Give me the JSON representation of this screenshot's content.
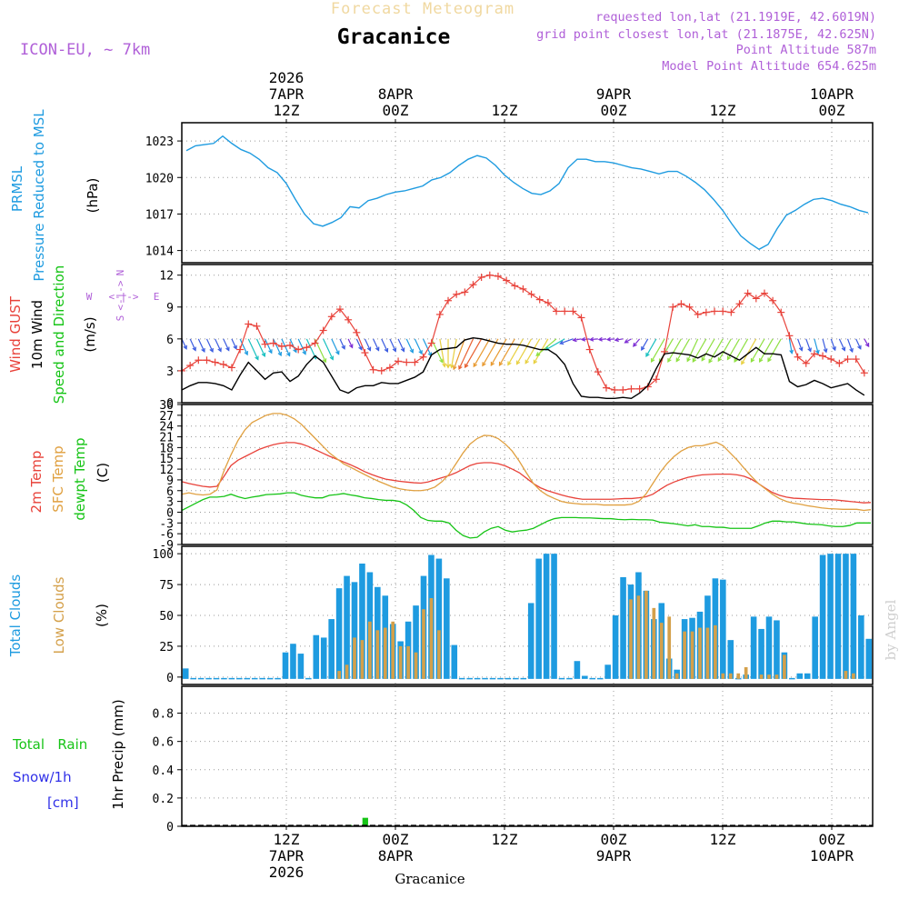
{
  "header": {
    "subtitle": "Forecast Meteogram",
    "location": "Gracanice",
    "model": "ICON-EU, ~ 7km",
    "requested": "requested lon,lat (21.1919E, 42.6019N)",
    "gridpoint": "grid point closest lon,lat (21.1875E, 42.625N)",
    "point_alt": "Point Altitude 587m",
    "model_alt": "Model Point Altitude 654.625m",
    "watermark": "by Angel",
    "footer_location": "Gracanice"
  },
  "colors": {
    "pressure": "#1e9be0",
    "gust": "#e8423a",
    "wind": "#000000",
    "temp": "#e8423a",
    "sfc": "#e0a040",
    "dew": "#16c416",
    "total_cloud": "#1e9be0",
    "low_cloud": "#d4a04a",
    "rain": "#16c416",
    "snow": "#3030e8",
    "purple": "#b060d8"
  },
  "time_axis": {
    "top": [
      {
        "t": 12,
        "lines": [
          "2026",
          "7APR",
          "12Z"
        ]
      },
      {
        "t": 24,
        "lines": [
          "8APR",
          "00Z"
        ]
      },
      {
        "t": 36,
        "lines": [
          "12Z"
        ]
      },
      {
        "t": 48,
        "lines": [
          "9APR",
          "00Z"
        ]
      },
      {
        "t": 60,
        "lines": [
          "12Z"
        ]
      },
      {
        "t": 72,
        "lines": [
          "10APR",
          "00Z"
        ]
      }
    ],
    "bottom": [
      {
        "t": 12,
        "lines": [
          "12Z",
          "7APR",
          "2026"
        ]
      },
      {
        "t": 24,
        "lines": [
          "00Z",
          "8APR"
        ]
      },
      {
        "t": 36,
        "lines": [
          "12Z"
        ]
      },
      {
        "t": 48,
        "lines": [
          "00Z",
          "9APR"
        ]
      },
      {
        "t": 60,
        "lines": [
          "12Z"
        ]
      },
      {
        "t": 72,
        "lines": [
          "00Z",
          "10APR"
        ]
      }
    ],
    "t_start": 0.5,
    "t_end": 76.5
  },
  "chart_data": [
    {
      "type": "line",
      "title": "PRMSL Pressure Reduced to MSL",
      "ylabel": "(hPa)",
      "ylim": [
        1013,
        1024.5
      ],
      "yticks": [
        1014,
        1017,
        1020,
        1023
      ],
      "x_start": 1,
      "x_step": 1,
      "series": [
        {
          "name": "PRMSL",
          "values": [
            1022.2,
            1022.6,
            1022.7,
            1022.8,
            1023.4,
            1022.8,
            1022.3,
            1022.0,
            1021.5,
            1020.8,
            1020.4,
            1019.5,
            1018.2,
            1017.0,
            1016.2,
            1016.0,
            1016.3,
            1016.7,
            1017.6,
            1017.5,
            1018.1,
            1018.3,
            1018.6,
            1018.8,
            1018.9,
            1019.1,
            1019.3,
            1019.8,
            1020.0,
            1020.4,
            1021.0,
            1021.5,
            1021.8,
            1021.6,
            1021.0,
            1020.2,
            1019.6,
            1019.1,
            1018.7,
            1018.6,
            1018.9,
            1019.5,
            1020.8,
            1021.5,
            1021.5,
            1021.3,
            1021.3,
            1021.2,
            1021.0,
            1020.8,
            1020.7,
            1020.5,
            1020.3,
            1020.5,
            1020.5,
            1020.1,
            1019.6,
            1019.0,
            1018.2,
            1017.3,
            1016.2,
            1015.2,
            1014.6,
            1014.1,
            1014.5,
            1015.8,
            1016.9,
            1017.3,
            1017.8,
            1018.2,
            1018.3,
            1018.1,
            1017.8,
            1017.6,
            1017.3,
            1017.1,
            1017.4
          ]
        }
      ]
    },
    {
      "type": "line",
      "title": "Wind GUST / 10m Wind Speed and Direction",
      "ylabel": "(m/s)",
      "compass": "N, W <-|-> E, S",
      "ylim": [
        0,
        13
      ],
      "yticks": [
        0,
        3,
        6,
        9,
        12
      ],
      "x_start": 1,
      "x_step": 1,
      "series": [
        {
          "name": "Wind GUST",
          "values": [
            3.0,
            3.5,
            4.0,
            4.0,
            3.8,
            3.6,
            3.3,
            5.0,
            7.4,
            7.2,
            5.5,
            5.6,
            5.3,
            5.4,
            5.0,
            5.2,
            5.6,
            6.8,
            8.1,
            8.8,
            7.8,
            6.6,
            4.7,
            3.1,
            3.0,
            3.3,
            3.9,
            3.8,
            3.8,
            4.3,
            5.6,
            8.3,
            9.6,
            10.2,
            10.4,
            11.1,
            11.8,
            12.0,
            11.9,
            11.5,
            11.0,
            10.7,
            10.2,
            9.7,
            9.4,
            8.6,
            8.6,
            8.6,
            8.0,
            5.0,
            2.9,
            1.4,
            1.2,
            1.2,
            1.3,
            1.3,
            1.5,
            2.2,
            4.8,
            9.0,
            9.3,
            9.0,
            8.3,
            8.5,
            8.6,
            8.6,
            8.5,
            9.3,
            10.3,
            9.8,
            10.3,
            9.6,
            8.5,
            6.3,
            4.3,
            3.7,
            4.6,
            4.4,
            4.1,
            3.7,
            4.1,
            4.1,
            2.8
          ]
        },
        {
          "name": "10m Wind",
          "values": [
            1.2,
            1.6,
            1.9,
            1.9,
            1.8,
            1.6,
            1.2,
            2.6,
            3.8,
            3.0,
            2.2,
            2.8,
            2.9,
            2.0,
            2.5,
            3.6,
            4.4,
            3.8,
            2.5,
            1.2,
            0.9,
            1.4,
            1.6,
            1.6,
            1.9,
            1.8,
            1.8,
            2.1,
            2.4,
            2.9,
            4.5,
            5.0,
            5.1,
            5.2,
            5.9,
            6.1,
            6.0,
            5.8,
            5.6,
            5.5,
            5.5,
            5.4,
            5.2,
            5.0,
            5.0,
            4.5,
            3.6,
            1.8,
            0.6,
            0.5,
            0.5,
            0.4,
            0.4,
            0.5,
            0.4,
            0.9,
            1.6,
            3.2,
            4.6,
            4.7,
            4.6,
            4.5,
            4.2,
            4.6,
            4.3,
            4.8,
            4.4,
            4.0,
            4.6,
            5.2,
            4.6,
            4.6,
            4.5,
            2.0,
            1.5,
            1.7,
            2.1,
            1.8,
            1.4,
            1.6,
            1.8,
            1.2,
            0.7
          ]
        }
      ],
      "wind_dir": [
        25,
        25,
        25,
        25,
        25,
        25,
        25,
        25,
        25,
        25,
        25,
        25,
        25,
        25,
        25,
        25,
        25,
        25,
        25,
        25,
        25,
        25,
        25,
        25,
        25,
        25,
        25,
        25,
        25,
        25,
        25,
        10,
        0,
        350,
        340,
        335,
        330,
        330,
        330,
        330,
        330,
        330,
        330,
        330,
        330,
        310,
        300,
        290,
        280,
        275,
        275,
        275,
        275,
        280,
        300,
        320,
        330,
        330,
        330,
        330,
        330,
        330,
        335,
        330,
        330,
        330,
        330,
        330,
        330,
        330,
        330,
        330,
        330,
        10,
        20,
        20,
        15,
        15,
        20,
        25,
        20,
        25,
        30
      ]
    },
    {
      "type": "line",
      "title": "2m Temp / SFC Temp / dewpt Temp",
      "ylabel": "(C)",
      "ylim": [
        -9,
        30
      ],
      "yticks": [
        -9,
        -6,
        -3,
        0,
        3,
        6,
        9,
        12,
        15,
        18,
        21,
        24,
        27,
        30
      ],
      "x_start": 1,
      "x_step": 1,
      "series": [
        {
          "name": "2m Temp",
          "values": [
            8.5,
            8.0,
            7.6,
            7.2,
            7.0,
            7.2,
            10.0,
            13.0,
            14.5,
            15.5,
            16.5,
            17.5,
            18.2,
            18.8,
            19.2,
            19.4,
            19.4,
            19.0,
            18.3,
            17.4,
            16.5,
            15.6,
            14.8,
            14.0,
            13.2,
            12.3,
            11.3,
            10.5,
            9.8,
            9.2,
            8.9,
            8.6,
            8.4,
            8.2,
            8.1,
            8.4,
            9.0,
            9.6,
            10.2,
            11.0,
            12.0,
            13.0,
            13.6,
            13.8,
            13.8,
            13.5,
            12.9,
            12.0,
            11.0,
            9.5,
            8.0,
            6.8,
            6.0,
            5.4,
            4.8,
            4.3,
            3.9,
            3.6,
            3.6,
            3.6,
            3.6,
            3.6,
            3.7,
            3.8,
            3.8,
            4.0,
            4.3,
            5.0,
            6.3,
            7.5,
            8.4,
            9.1,
            9.7,
            10.1,
            10.4,
            10.5,
            10.6,
            10.6,
            10.6,
            10.4,
            10.0,
            9.2,
            8.0,
            6.7,
            5.5,
            4.7,
            4.2,
            3.9,
            3.8,
            3.7,
            3.6,
            3.5,
            3.5,
            3.4,
            3.2,
            3.0,
            2.8,
            2.6,
            2.7
          ]
        },
        {
          "name": "SFC Temp",
          "values": [
            5.0,
            5.4,
            5.0,
            4.8,
            5.0,
            6.2,
            11.5,
            16.0,
            20.0,
            23.0,
            25.0,
            26.0,
            27.0,
            27.5,
            27.5,
            27.0,
            26.0,
            24.5,
            22.5,
            20.5,
            18.5,
            16.5,
            15.0,
            13.5,
            12.5,
            11.5,
            10.5,
            9.5,
            8.6,
            7.8,
            7.0,
            6.5,
            6.2,
            6.0,
            6.0,
            6.3,
            7.0,
            8.5,
            10.5,
            13.5,
            16.5,
            19.0,
            20.5,
            21.4,
            21.3,
            20.5,
            19.0,
            17.0,
            14.2,
            11.0,
            8.0,
            6.0,
            4.7,
            3.8,
            3.0,
            2.6,
            2.4,
            2.2,
            2.2,
            2.2,
            2.0,
            2.0,
            2.0,
            2.0,
            2.2,
            3.0,
            5.0,
            8.0,
            11.0,
            13.5,
            15.5,
            17.0,
            18.0,
            18.5,
            18.5,
            19.0,
            19.5,
            18.5,
            16.5,
            14.5,
            12.2,
            10.0,
            8.0,
            6.5,
            5.0,
            3.8,
            3.0,
            2.5,
            2.2,
            1.8,
            1.5,
            1.2,
            1.0,
            0.9,
            0.8,
            0.8,
            0.8,
            0.5,
            0.7
          ]
        },
        {
          "name": "dewpt Temp",
          "values": [
            0.5,
            1.5,
            2.5,
            3.5,
            4.2,
            4.2,
            4.4,
            5.0,
            4.3,
            3.8,
            4.2,
            4.5,
            4.9,
            5.0,
            5.1,
            5.4,
            5.4,
            4.7,
            4.3,
            4.0,
            4.0,
            4.7,
            4.9,
            5.2,
            4.8,
            4.5,
            4.0,
            3.8,
            3.5,
            3.3,
            3.3,
            3.0,
            2.0,
            0.5,
            -1.5,
            -2.3,
            -2.5,
            -2.5,
            -3.0,
            -5.0,
            -6.5,
            -7.2,
            -7.0,
            -5.5,
            -4.5,
            -4.0,
            -5.0,
            -5.5,
            -5.2,
            -5.0,
            -4.5,
            -3.5,
            -2.5,
            -1.8,
            -1.5,
            -1.5,
            -1.5,
            -1.6,
            -1.6,
            -1.7,
            -1.8,
            -1.8,
            -2.0,
            -2.1,
            -2.0,
            -2.1,
            -2.1,
            -2.2,
            -2.8,
            -3.0,
            -3.2,
            -3.5,
            -3.8,
            -3.5,
            -4.0,
            -4.0,
            -4.2,
            -4.2,
            -4.5,
            -4.5,
            -4.5,
            -4.5,
            -3.8,
            -3.0,
            -2.5,
            -2.5,
            -2.7,
            -2.7,
            -3.0,
            -3.3,
            -3.4,
            -3.5,
            -3.8,
            -4.0,
            -4.0,
            -3.7,
            -3.0,
            -3.0,
            -3.0
          ]
        }
      ]
    },
    {
      "type": "bar",
      "title": "Total Clouds / Low Clouds",
      "ylabel": "(%)",
      "ylim": [
        -6,
        106
      ],
      "yticks": [
        0,
        25,
        50,
        75,
        100
      ],
      "x_start": 1,
      "x_step": 1,
      "series": [
        {
          "name": "Total Clouds",
          "values": [
            7,
            0,
            0,
            0,
            0,
            0,
            0,
            0,
            0,
            0,
            0,
            0,
            0,
            20,
            27,
            19,
            0,
            34,
            32,
            47,
            72,
            82,
            77,
            92,
            85,
            73,
            66,
            43,
            29,
            45,
            58,
            82,
            99,
            96,
            80,
            26,
            0,
            0,
            0,
            0,
            0,
            0,
            0,
            0,
            0,
            60,
            96,
            100,
            100,
            0,
            0,
            13,
            1,
            0,
            0,
            10,
            50,
            81,
            75,
            85,
            70,
            47,
            60,
            15,
            6,
            47,
            48,
            53,
            66,
            80,
            79,
            30,
            0,
            2,
            49,
            39,
            49,
            46,
            20,
            0,
            3,
            3,
            49,
            99,
            100,
            100,
            100,
            100,
            50,
            31
          ]
        },
        {
          "name": "Low Clouds",
          "values": [
            0,
            0,
            0,
            0,
            0,
            0,
            0,
            0,
            0,
            0,
            0,
            0,
            0,
            0,
            0,
            0,
            0,
            0,
            0,
            0,
            5,
            10,
            32,
            30,
            45,
            38,
            40,
            45,
            25,
            25,
            20,
            55,
            64,
            38,
            0,
            0,
            0,
            0,
            0,
            0,
            0,
            0,
            0,
            0,
            0,
            0,
            0,
            0,
            0,
            0,
            0,
            0,
            0,
            0,
            0,
            0,
            0,
            0,
            63,
            66,
            70,
            56,
            44,
            49,
            3,
            37,
            37,
            40,
            40,
            42,
            3,
            3,
            3,
            8,
            0,
            2,
            2,
            2,
            18,
            0,
            0,
            0,
            0,
            0,
            0,
            0,
            5,
            3,
            0,
            0
          ]
        }
      ]
    },
    {
      "type": "bar",
      "title": "Total Rain / Snow/1h [cm] / 1hr Precip (mm)",
      "ylabel": "1hr Precip (mm)",
      "ylim": [
        0,
        0.99
      ],
      "yticks": [
        0,
        0.2,
        0.4,
        0.6,
        0.8
      ],
      "x_start": 1,
      "x_step": 1,
      "series": [
        {
          "name": "Total Rain",
          "values": [
            0,
            0,
            0,
            0,
            0,
            0,
            0,
            0,
            0,
            0,
            0,
            0,
            0,
            0,
            0,
            0,
            0,
            0,
            0,
            0,
            0.01,
            0,
            0.06,
            0,
            0,
            0,
            0,
            0,
            0,
            0,
            0,
            0,
            0,
            0,
            0,
            0,
            0,
            0,
            0,
            0,
            0,
            0,
            0,
            0,
            0,
            0,
            0,
            0,
            0,
            0,
            0,
            0,
            0,
            0,
            0,
            0,
            0,
            0,
            0,
            0,
            0,
            0,
            0,
            0,
            0,
            0,
            0,
            0,
            0,
            0,
            0,
            0,
            0,
            0,
            0,
            0,
            0
          ]
        },
        {
          "name": "Snow/1h",
          "values": []
        }
      ]
    }
  ],
  "labels": {
    "p1": [
      "PRMSL",
      "Pressure Reduced to MSL",
      "(hPa)"
    ],
    "p2": [
      "Wind GUST",
      "10m Wind",
      "Speed and Direction",
      "(m/s)"
    ],
    "p3": [
      "2m Temp",
      "SFC Temp",
      "dewpt Temp",
      "(C)"
    ],
    "p4": [
      "Total Clouds",
      "Low Clouds",
      "(%)"
    ],
    "p5": [
      "Total   Rain",
      "Snow/1h",
      "[cm]",
      "1hr Precip (mm)"
    ],
    "compass": {
      "n": "N",
      "s": "S",
      "w": "W",
      "e": "E",
      "arrow": "<-|->"
    }
  }
}
